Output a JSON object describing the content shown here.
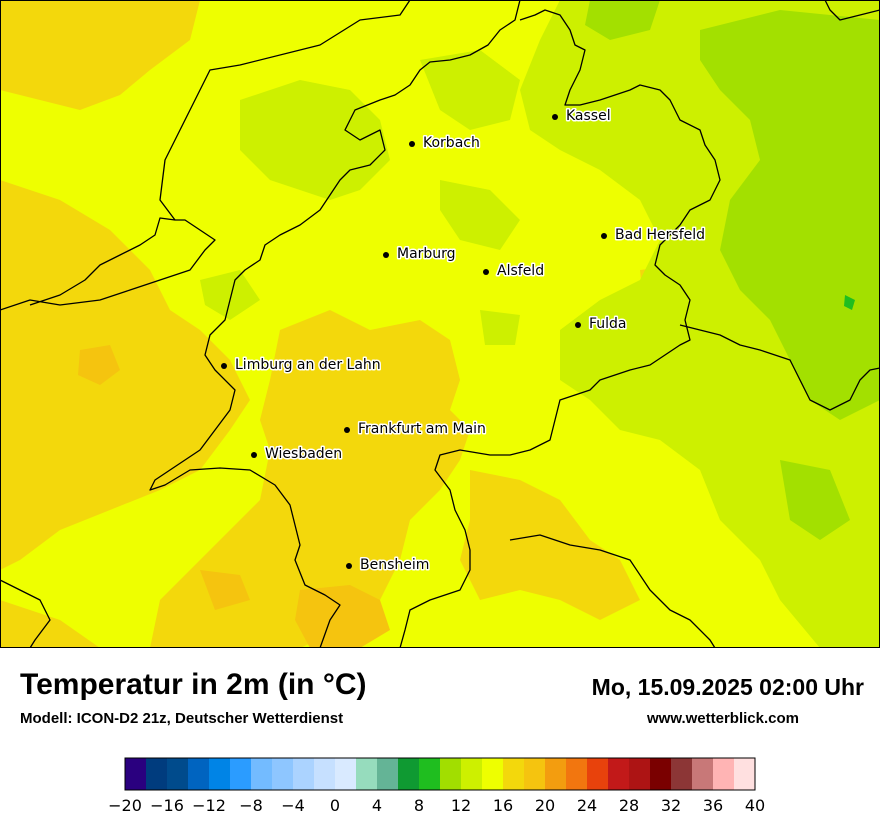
{
  "map": {
    "cities": [
      {
        "name": "Kassel"
      },
      {
        "name": "Korbach"
      },
      {
        "name": "Bad Hersfeld"
      },
      {
        "name": "Marburg"
      },
      {
        "name": "Alsfeld"
      },
      {
        "name": "Fulda"
      },
      {
        "name": "Limburg an der Lahn"
      },
      {
        "name": "Frankfurt am Main"
      },
      {
        "name": "Wiesbaden"
      },
      {
        "name": "Bensheim"
      }
    ],
    "colors": {
      "base": "#eeff00",
      "warm": "#f3d80c",
      "warmer": "#f5c40f",
      "cool": "#cdf000",
      "cooler": "#a3e000",
      "coolest": "#2db54a",
      "border": "#000000"
    }
  },
  "header": {
    "title": "Temperatur in 2m (in °C)",
    "model": "Modell: ICON-D2 21z, Deutscher Wetterdienst",
    "datetime": "Mo, 15.09.2025 02:00 Uhr",
    "website": "www.wetterblick.com"
  },
  "legend": {
    "colors": [
      "#2a007f",
      "#003c7e",
      "#004b8c",
      "#0064c0",
      "#0084e6",
      "#2b9cff",
      "#73bbff",
      "#8ec6ff",
      "#abd3ff",
      "#c6e0ff",
      "#d9eaff",
      "#96dcbd",
      "#64b496",
      "#0f9a32",
      "#1fbe1f",
      "#a2de00",
      "#cdf000",
      "#eeff00",
      "#f3d80c",
      "#f5c40f",
      "#f39d0f",
      "#f2760f",
      "#e8420c",
      "#c21919",
      "#ad1414",
      "#7a0000",
      "#8c3636",
      "#c87878",
      "#ffb4b4",
      "#ffe0e0"
    ],
    "ticks": [
      "−20",
      "−16",
      "−12",
      "−8",
      "−4",
      "0",
      "4",
      "8",
      "12",
      "16",
      "20",
      "24",
      "28",
      "32",
      "36",
      "40"
    ]
  }
}
